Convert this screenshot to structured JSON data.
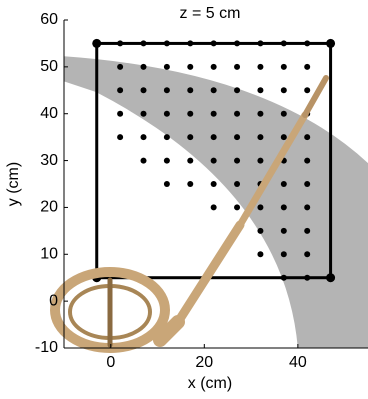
{
  "chart_data": {
    "type": "scatter",
    "title": "z = 5 cm",
    "x_label": "x (cm)",
    "y_label": "y (cm)",
    "xlim": [
      -10,
      55
    ],
    "ylim": [
      -10,
      60
    ],
    "xticks": [
      0,
      20,
      40
    ],
    "yticks": [
      -10,
      0,
      10,
      20,
      30,
      40,
      50,
      60
    ],
    "color": "#000000",
    "region_color": "#b4b4b4",
    "square": {
      "x": [
        -3,
        47
      ],
      "y": [
        5,
        55
      ]
    },
    "x": [
      2,
      7,
      12,
      17,
      22,
      27,
      32,
      37,
      42,
      2,
      7,
      12,
      17,
      22,
      27,
      32,
      37,
      42,
      2,
      7,
      12,
      17,
      22,
      27,
      32,
      37,
      42,
      2,
      7,
      12,
      17,
      22,
      27,
      32,
      37,
      42,
      2,
      7,
      12,
      17,
      22,
      27,
      32,
      37,
      42,
      7,
      12,
      17,
      22,
      27,
      32,
      37,
      42,
      12,
      17,
      22,
      27,
      32,
      37,
      42,
      22,
      27,
      32,
      37,
      42,
      27,
      32,
      37,
      42,
      32,
      37,
      42,
      37,
      42
    ],
    "y": [
      55,
      55,
      55,
      55,
      55,
      55,
      55,
      55,
      55,
      50,
      50,
      50,
      50,
      50,
      50,
      50,
      50,
      50,
      45,
      45,
      45,
      45,
      45,
      45,
      45,
      45,
      45,
      40,
      40,
      40,
      40,
      40,
      40,
      40,
      40,
      40,
      35,
      35,
      35,
      35,
      35,
      35,
      35,
      35,
      35,
      30,
      30,
      30,
      30,
      30,
      30,
      30,
      30,
      25,
      25,
      25,
      25,
      25,
      25,
      25,
      20,
      20,
      20,
      20,
      20,
      15,
      15,
      15,
      15,
      10,
      10,
      10,
      5,
      5
    ]
  }
}
